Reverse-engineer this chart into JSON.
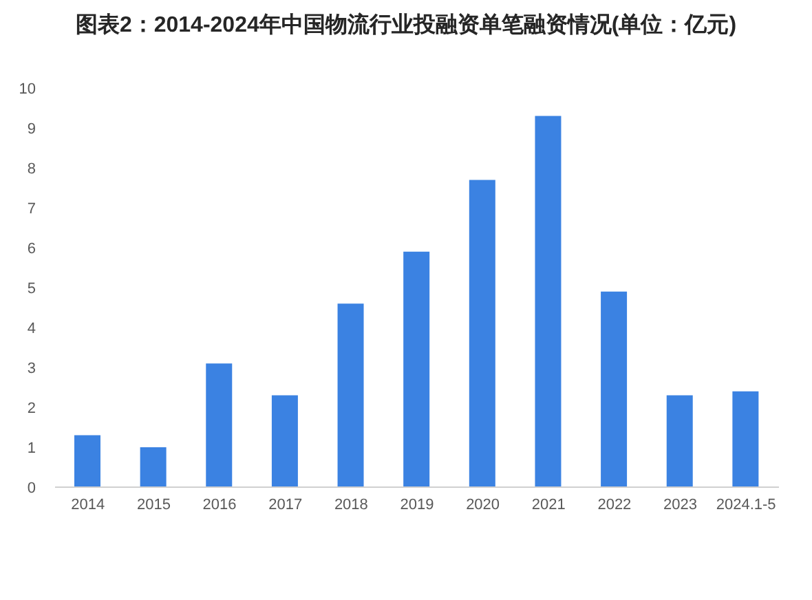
{
  "chart_data": {
    "type": "bar",
    "title": "图表2：2014-2024年中国物流行业投融资单笔融资情况(单位：亿元)",
    "categories": [
      "2014",
      "2015",
      "2016",
      "2017",
      "2018",
      "2019",
      "2020",
      "2021",
      "2022",
      "2023",
      "2024.1-5"
    ],
    "values": [
      1.3,
      1.0,
      3.1,
      2.3,
      4.6,
      5.9,
      7.7,
      9.3,
      4.9,
      2.3,
      2.4
    ],
    "color": "#3b82e2",
    "ylim": [
      0,
      10
    ],
    "yticks": [
      0,
      1,
      2,
      3,
      4,
      5,
      6,
      7,
      8,
      9,
      10
    ]
  }
}
